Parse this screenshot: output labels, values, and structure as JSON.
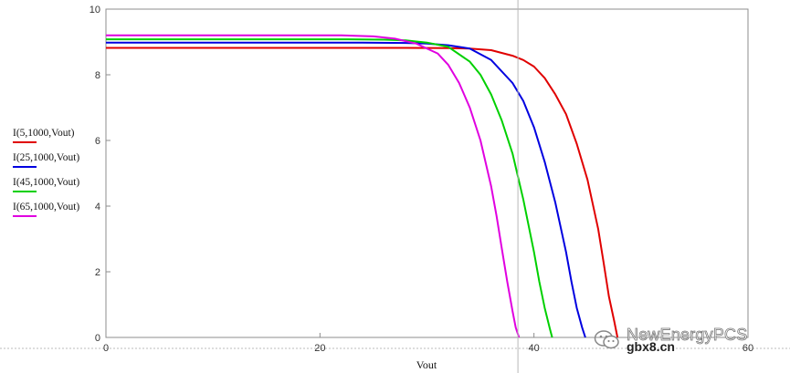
{
  "chart_data": {
    "type": "line",
    "xlabel": "Vout",
    "ylabel": "",
    "xlim": [
      0,
      60
    ],
    "ylim": [
      0,
      10
    ],
    "x_ticks": [
      "0",
      "20",
      "40",
      "60"
    ],
    "y_ticks": [
      "0",
      "2",
      "4",
      "6",
      "8",
      "10"
    ],
    "cursor_x": 38.5,
    "grid": false,
    "legend_position": "left",
    "series": [
      {
        "name": "I(5,1000,Vout)",
        "color": "#e00000",
        "x": [
          0,
          24,
          28,
          32,
          34,
          36,
          38,
          39,
          40,
          41,
          42,
          43,
          44,
          45,
          46,
          46.5,
          47,
          47.5,
          47.8
        ],
        "y": [
          8.82,
          8.82,
          8.82,
          8.81,
          8.8,
          8.75,
          8.58,
          8.45,
          8.25,
          7.9,
          7.4,
          6.8,
          5.9,
          4.8,
          3.3,
          2.3,
          1.25,
          0.5,
          0
        ]
      },
      {
        "name": "I(25,1000,Vout)",
        "color": "#0000e0",
        "x": [
          0,
          24,
          28,
          30,
          32,
          34,
          36,
          38,
          39,
          40,
          41,
          42,
          43,
          43.5,
          44,
          44.5,
          44.8
        ],
        "y": [
          8.98,
          8.98,
          8.97,
          8.95,
          8.9,
          8.8,
          8.45,
          7.75,
          7.2,
          6.4,
          5.35,
          4.1,
          2.6,
          1.7,
          0.9,
          0.3,
          0
        ]
      },
      {
        "name": "I(45,1000,Vout)",
        "color": "#00d000",
        "x": [
          0,
          22,
          26,
          28,
          30,
          32,
          34,
          35,
          36,
          37,
          38,
          39,
          40,
          40.5,
          41,
          41.5,
          41.7
        ],
        "y": [
          9.08,
          9.08,
          9.07,
          9.05,
          8.98,
          8.85,
          8.4,
          8.0,
          7.4,
          6.6,
          5.6,
          4.2,
          2.6,
          1.7,
          0.9,
          0.25,
          0
        ]
      },
      {
        "name": "I(65,1000,Vout)",
        "color": "#e000e0",
        "x": [
          0,
          22,
          25,
          27,
          29,
          31,
          32,
          33,
          34,
          35,
          36,
          36.5,
          37,
          37.5,
          38,
          38.3,
          38.6
        ],
        "y": [
          9.2,
          9.2,
          9.17,
          9.1,
          8.95,
          8.65,
          8.3,
          7.75,
          7.0,
          6.0,
          4.6,
          3.7,
          2.7,
          1.7,
          0.8,
          0.3,
          0
        ]
      }
    ]
  },
  "watermark": {
    "line1": "NewEnergyPCS",
    "line2": "gbx8.cn"
  }
}
